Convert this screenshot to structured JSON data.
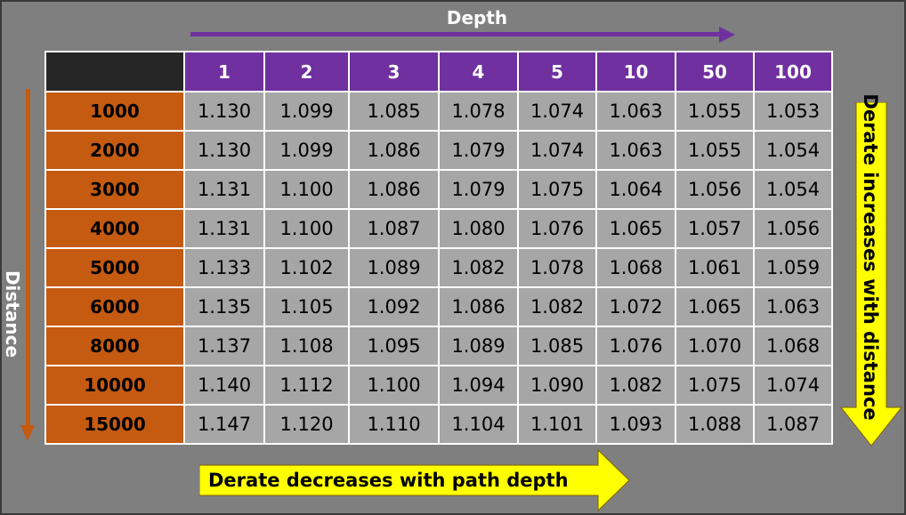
{
  "depth_title": "Depth",
  "distance_title": "Distance",
  "right_note": "Derate increases with distance",
  "bottom_note": "Derate decreases with path depth",
  "colors": {
    "background": "#7f7f7f",
    "depth_header": "#7030a0",
    "distance_header": "#c55a11",
    "corner": "#262626",
    "cell": "#a6a6a6",
    "note_arrow": "#ffff00"
  },
  "depths": [
    "1",
    "2",
    "3",
    "4",
    "5",
    "10",
    "50",
    "100"
  ],
  "rows": [
    {
      "distance": "1000",
      "values": [
        "1.130",
        "1.099",
        "1.085",
        "1.078",
        "1.074",
        "1.063",
        "1.055",
        "1.053"
      ]
    },
    {
      "distance": "2000",
      "values": [
        "1.130",
        "1.099",
        "1.086",
        "1.079",
        "1.074",
        "1.063",
        "1.055",
        "1.054"
      ]
    },
    {
      "distance": "3000",
      "values": [
        "1.131",
        "1.100",
        "1.086",
        "1.079",
        "1.075",
        "1.064",
        "1.056",
        "1.054"
      ]
    },
    {
      "distance": "4000",
      "values": [
        "1.131",
        "1.100",
        "1.087",
        "1.080",
        "1.076",
        "1.065",
        "1.057",
        "1.056"
      ]
    },
    {
      "distance": "5000",
      "values": [
        "1.133",
        "1.102",
        "1.089",
        "1.082",
        "1.078",
        "1.068",
        "1.061",
        "1.059"
      ]
    },
    {
      "distance": "6000",
      "values": [
        "1.135",
        "1.105",
        "1.092",
        "1.086",
        "1.082",
        "1.072",
        "1.065",
        "1.063"
      ]
    },
    {
      "distance": "8000",
      "values": [
        "1.137",
        "1.108",
        "1.095",
        "1.089",
        "1.085",
        "1.076",
        "1.070",
        "1.068"
      ]
    },
    {
      "distance": "10000",
      "values": [
        "1.140",
        "1.112",
        "1.100",
        "1.094",
        "1.090",
        "1.082",
        "1.075",
        "1.074"
      ]
    },
    {
      "distance": "15000",
      "values": [
        "1.147",
        "1.120",
        "1.110",
        "1.104",
        "1.101",
        "1.093",
        "1.088",
        "1.087"
      ]
    }
  ]
}
